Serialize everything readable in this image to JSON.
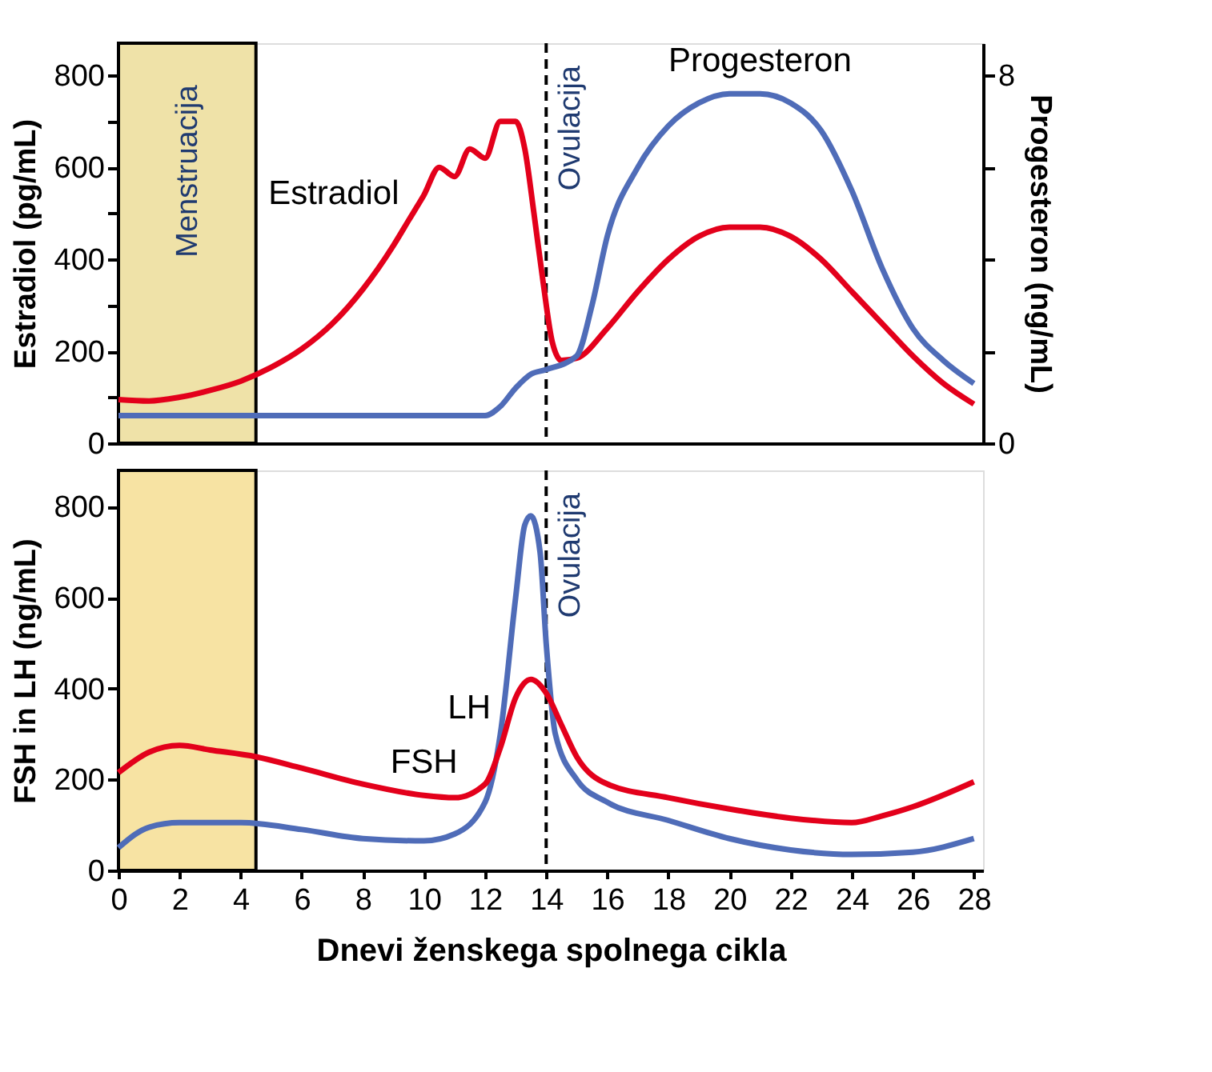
{
  "chart_data": [
    {
      "type": "line",
      "ylabel": "Estradiol (pg/mL)",
      "y2label": "Progesteron   (ng/mL)",
      "xlim": [
        0,
        28.3
      ],
      "ylim": [
        0,
        870
      ],
      "y2lim": [
        0,
        8.7
      ],
      "yticks": [
        0,
        {
          "value": 100,
          "label": null
        },
        200,
        {
          "value": 300,
          "label": null
        },
        400,
        {
          "value": 500,
          "label": null
        },
        600,
        {
          "value": 700,
          "label": null
        },
        800
      ],
      "y2ticks": [
        0,
        {
          "value": 2,
          "label": null
        },
        {
          "value": 4,
          "label": null
        },
        {
          "value": 6,
          "label": null
        },
        8
      ],
      "tick_labels": "y",
      "grid": false,
      "marker": "none",
      "line_style": "solid",
      "series": [
        {
          "color": "#e3001b",
          "x": [
            0,
            1,
            2,
            3,
            4,
            5,
            6,
            7,
            8,
            9,
            9.5,
            10,
            10.5,
            11,
            11.5,
            12,
            12.5,
            13,
            13.3,
            13.6,
            13.9,
            14.2,
            14.5,
            15,
            16,
            17,
            18,
            19,
            20,
            21,
            22,
            23,
            24,
            25,
            26,
            27,
            28
          ],
          "values": [
            95,
            92,
            100,
            115,
            135,
            165,
            205,
            260,
            335,
            430,
            485,
            540,
            600,
            580,
            640,
            620,
            700,
            700,
            640,
            500,
            350,
            220,
            180,
            185,
            250,
            330,
            400,
            450,
            470,
            470,
            450,
            400,
            330,
            260,
            190,
            130,
            85
          ]
        },
        {
          "color": "#4f6cb8",
          "axis": "y2",
          "x": [
            0,
            4,
            8,
            12,
            12.5,
            13,
            13.5,
            14,
            15,
            15.5,
            16,
            17,
            18,
            19,
            20,
            21,
            22,
            23,
            24,
            25,
            26,
            27,
            28
          ],
          "values": [
            0.6,
            0.6,
            0.6,
            0.6,
            0.8,
            1.2,
            1.5,
            1.6,
            1.9,
            3,
            4.5,
            6,
            6.9,
            7.4,
            7.6,
            7.6,
            7.4,
            6.8,
            5.5,
            3.8,
            2.5,
            1.8,
            1.3
          ]
        }
      ],
      "bands": [
        {
          "axis": "x",
          "from": 0,
          "to": 4.5,
          "label": "Menstruacija",
          "color": "#efe2a8"
        }
      ],
      "ref_lines": [
        {
          "axis": "x",
          "value": 14,
          "label": "Ovulacija",
          "line_style": "dashed"
        }
      ],
      "annotations": [
        {
          "text": "Estradiol",
          "x": 9.5,
          "y": 485
        },
        {
          "text": "Progesteron",
          "x": 21,
          "y": 760
        }
      ]
    },
    {
      "type": "line",
      "xlabel": "Dnevi ženskega spolnega cikla",
      "ylabel": "FSH  in  LH (ng/mL)",
      "xlim": [
        0,
        28.3
      ],
      "ylim": [
        0,
        880
      ],
      "xticks": [
        0,
        2,
        4,
        6,
        8,
        10,
        12,
        14,
        16,
        18,
        20,
        22,
        24,
        26,
        28
      ],
      "yticks": [
        0,
        200,
        400,
        600,
        800
      ],
      "grid": false,
      "marker": "none",
      "line_style": "solid",
      "series": [
        {
          "color": "#4f6cb8",
          "x": [
            0,
            1,
            2,
            4,
            6,
            8,
            10,
            11,
            12,
            12.5,
            13,
            13.3,
            13.5,
            13.8,
            14,
            14.3,
            15,
            16,
            18,
            20,
            22,
            24,
            26,
            28
          ],
          "values": [
            50,
            95,
            105,
            105,
            90,
            70,
            65,
            80,
            150,
            300,
            600,
            760,
            780,
            700,
            500,
            300,
            200,
            150,
            110,
            70,
            45,
            35,
            40,
            70
          ]
        },
        {
          "color": "#e3001b",
          "x": [
            0,
            1,
            2,
            3,
            4.5,
            6,
            8,
            10,
            11,
            12,
            12.5,
            13,
            13.5,
            14,
            14.5,
            15,
            16,
            18,
            20,
            22,
            24,
            25,
            26,
            28
          ],
          "values": [
            215,
            260,
            275,
            265,
            250,
            225,
            190,
            165,
            160,
            190,
            270,
            380,
            420,
            390,
            320,
            250,
            190,
            160,
            135,
            115,
            105,
            120,
            140,
            195
          ]
        }
      ],
      "bands": [
        {
          "axis": "x",
          "from": 0,
          "to": 4.5,
          "color": "#f7e3a3"
        }
      ],
      "ref_lines": [
        {
          "axis": "x",
          "value": 14,
          "label": "Ovulacija",
          "line_style": "dashed"
        }
      ],
      "annotations": [
        {
          "text": "LH",
          "x": 12.5,
          "y": 300
        },
        {
          "text": "FSH",
          "x": 10,
          "y": 165
        }
      ]
    }
  ]
}
